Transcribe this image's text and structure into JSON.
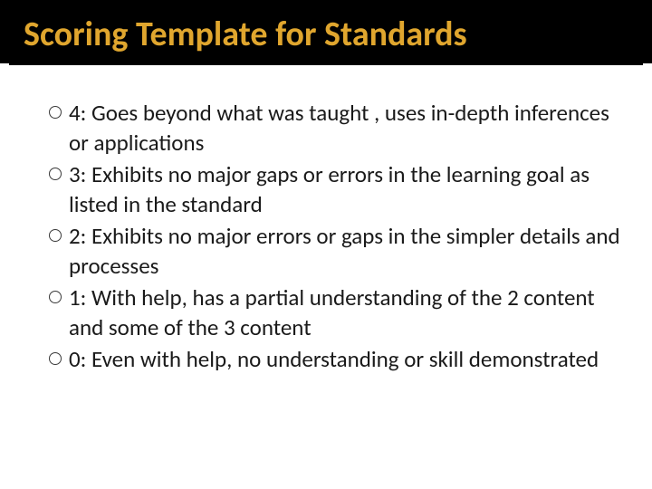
{
  "title": "Scoring Template for Standards",
  "title_color": "#e0a62e",
  "title_bg": "#000000",
  "title_fontsize": 38,
  "body_fontsize": 25,
  "text_color": "#1a1a1a",
  "bullet_marker_style": "hollow-circle",
  "items": [
    {
      "label": "4:  Goes beyond what was taught , uses in-depth inferences or applications"
    },
    {
      "label": "3: Exhibits no major gaps or errors in the learning goal as listed in the standard"
    },
    {
      "label": "2:  Exhibits no major errors or gaps in the simpler details and processes"
    },
    {
      "label": "1:  With help, has a partial understanding of the 2 content and some of the 3 content"
    },
    {
      "label": "0:  Even with help, no understanding or skill demonstrated"
    }
  ]
}
